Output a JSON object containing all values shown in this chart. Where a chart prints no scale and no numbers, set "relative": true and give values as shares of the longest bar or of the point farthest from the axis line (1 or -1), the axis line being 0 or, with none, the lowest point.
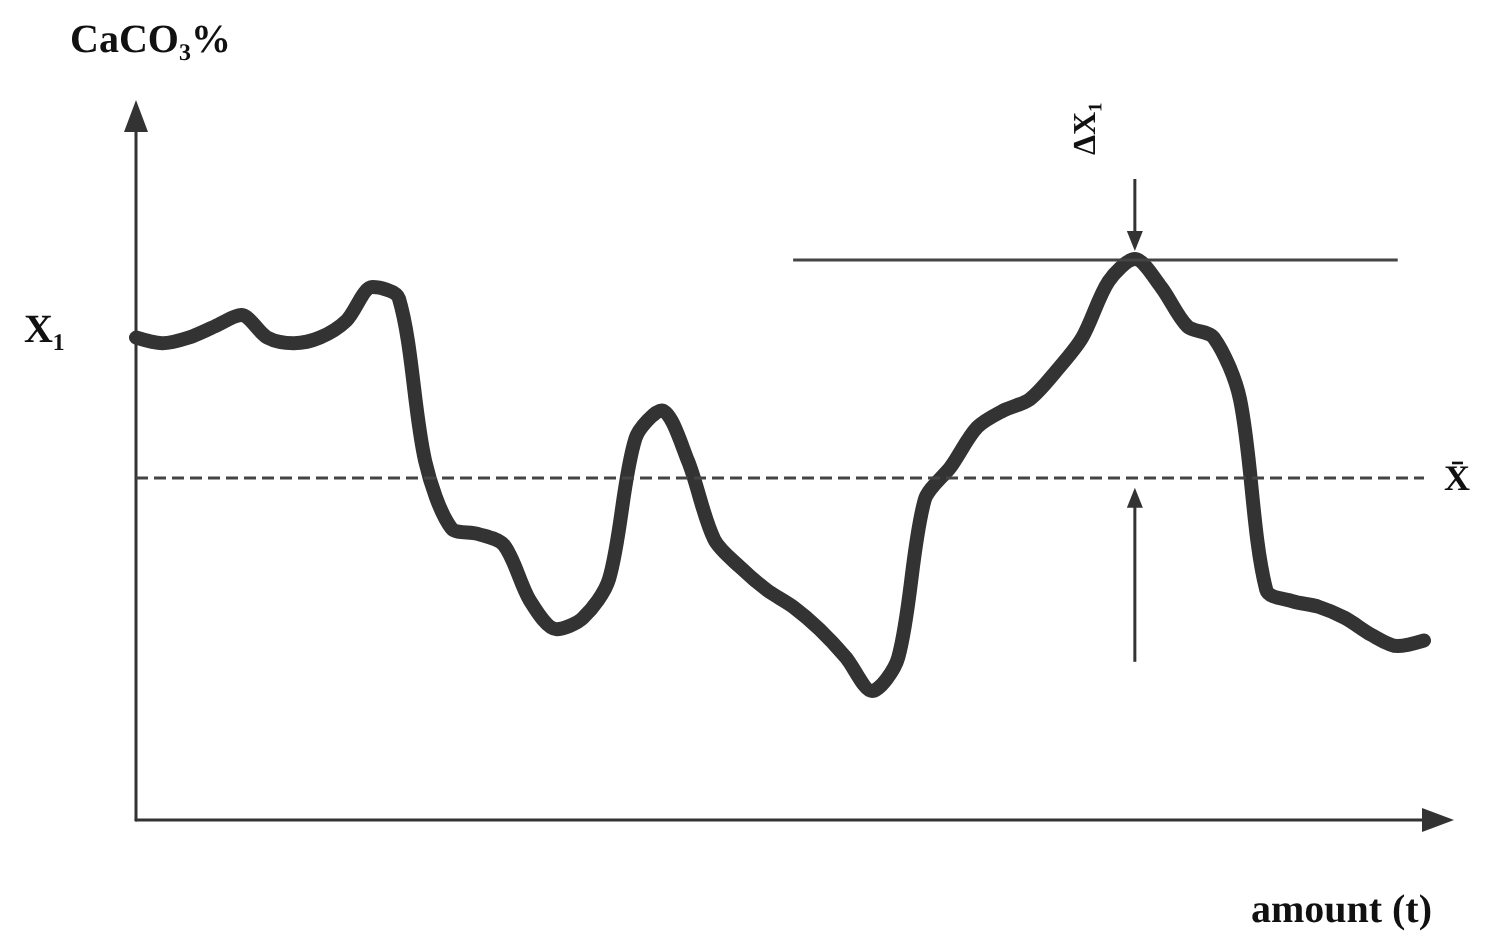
{
  "chart_data": {
    "type": "line",
    "relative": true,
    "xlabel": "amount (t)",
    "ylabel": "CaCO₃%",
    "color": "#333333",
    "line_style": "solid",
    "grid": false,
    "categories": [
      null,
      null,
      null,
      null,
      null,
      null,
      null,
      null,
      null,
      null,
      null,
      null,
      null,
      null,
      null,
      null,
      null,
      null,
      null,
      null,
      null,
      null,
      null,
      null,
      null,
      null,
      null,
      null,
      null,
      null,
      null,
      null,
      null,
      null,
      null,
      null,
      null,
      null,
      null,
      null,
      null,
      null,
      null,
      null,
      null,
      null,
      null,
      null,
      null,
      null
    ],
    "values": [
      0.86,
      0.85,
      0.86,
      0.88,
      0.9,
      0.86,
      0.85,
      0.86,
      0.89,
      0.95,
      0.93,
      0.64,
      0.52,
      0.51,
      0.49,
      0.39,
      0.34,
      0.36,
      0.43,
      0.68,
      0.73,
      0.64,
      0.5,
      0.45,
      0.41,
      0.38,
      0.34,
      0.29,
      0.23,
      0.29,
      0.57,
      0.63,
      0.7,
      0.73,
      0.75,
      0.8,
      0.86,
      0.96,
      1,
      0.95,
      0.88,
      0.86,
      0.75,
      0.41,
      0.39,
      0.38,
      0.36,
      0.33,
      0.31,
      0.32
    ],
    "ref_lines": [
      {
        "axis": "y",
        "value": 0.61,
        "label": "X̄",
        "line_style": "dashed"
      },
      {
        "axis": "y",
        "value": 1,
        "line_style": "solid"
      }
    ],
    "annotations": [
      "X₁",
      "ΔX₁"
    ]
  }
}
